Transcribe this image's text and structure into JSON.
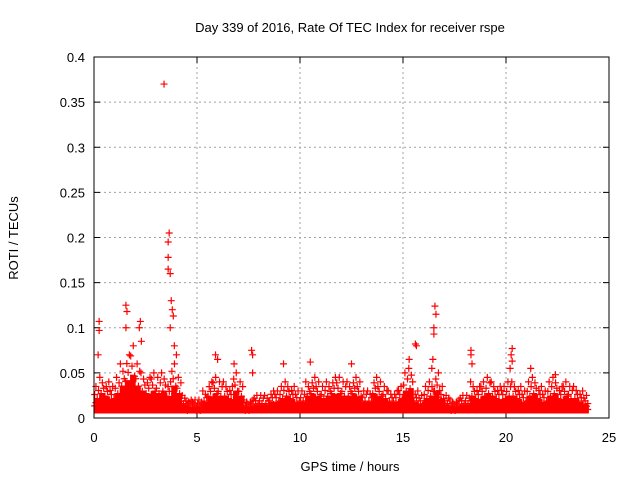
{
  "chart_data": {
    "type": "scatter",
    "title": "Day 339 of 2016, Rate Of TEC Index for receiver rspe",
    "xlabel": "GPS time / hours",
    "ylabel": "ROTI / TECUs",
    "xlim": [
      0,
      25
    ],
    "ylim": [
      0,
      0.4
    ],
    "xticks": [
      "0",
      "5",
      "10",
      "15",
      "20",
      "25"
    ],
    "xtick_values": [
      0,
      5,
      10,
      15,
      20,
      25
    ],
    "yticks": [
      "0",
      "0.05",
      "0.1",
      "0.15",
      "0.2",
      "0.25",
      "0.3",
      "0.35",
      "0.4"
    ],
    "ytick_values": [
      0,
      0.05,
      0.1,
      0.15,
      0.2,
      0.25,
      0.3,
      0.35,
      0.4
    ],
    "grid": true,
    "legend": "none",
    "series_color": "#ff0000",
    "marker": "plus",
    "band": {
      "x_start": 0,
      "x_step": 0.25,
      "lower": 0.005,
      "upper": [
        0.035,
        0.045,
        0.04,
        0.035,
        0.045,
        0.06,
        0.07,
        0.08,
        0.06,
        0.05,
        0.045,
        0.05,
        0.045,
        0.05,
        0.04,
        0.06,
        0.045,
        0.025,
        0.02,
        0.02,
        0.02,
        0.03,
        0.04,
        0.045,
        0.04,
        0.04,
        0.035,
        0.05,
        0.04,
        0.02,
        0.02,
        0.025,
        0.025,
        0.025,
        0.03,
        0.03,
        0.035,
        0.04,
        0.035,
        0.03,
        0.03,
        0.04,
        0.045,
        0.04,
        0.035,
        0.04,
        0.045,
        0.045,
        0.04,
        0.04,
        0.045,
        0.04,
        0.03,
        0.03,
        0.045,
        0.04,
        0.035,
        0.03,
        0.03,
        0.035,
        0.05,
        0.055,
        0.03,
        0.025,
        0.035,
        0.04,
        0.05,
        0.035,
        0.025,
        0.02,
        0.02,
        0.025,
        0.025,
        0.04,
        0.035,
        0.04,
        0.045,
        0.04,
        0.035,
        0.035,
        0.04,
        0.04,
        0.035,
        0.03,
        0.04,
        0.045,
        0.035,
        0.03,
        0.04,
        0.045,
        0.035,
        0.04,
        0.035,
        0.035,
        0.03,
        0.025
      ]
    },
    "outliers": [
      [
        0.25,
        0.107
      ],
      [
        0.25,
        0.097
      ],
      [
        0.2,
        0.07
      ],
      [
        1.55,
        0.125
      ],
      [
        1.6,
        0.118
      ],
      [
        1.55,
        0.1
      ],
      [
        2.25,
        0.107
      ],
      [
        2.2,
        0.1
      ],
      [
        2.3,
        0.085
      ],
      [
        3.4,
        0.37
      ],
      [
        3.65,
        0.205
      ],
      [
        3.6,
        0.195
      ],
      [
        3.6,
        0.178
      ],
      [
        3.6,
        0.165
      ],
      [
        3.7,
        0.16
      ],
      [
        3.75,
        0.13
      ],
      [
        3.8,
        0.12
      ],
      [
        3.85,
        0.113
      ],
      [
        3.7,
        0.1
      ],
      [
        3.9,
        0.08
      ],
      [
        4.0,
        0.07
      ],
      [
        5.9,
        0.07
      ],
      [
        6.0,
        0.065
      ],
      [
        6.8,
        0.06
      ],
      [
        7.65,
        0.075
      ],
      [
        7.7,
        0.07
      ],
      [
        7.7,
        0.05
      ],
      [
        9.2,
        0.06
      ],
      [
        10.5,
        0.062
      ],
      [
        12.5,
        0.06
      ],
      [
        15.3,
        0.065
      ],
      [
        15.6,
        0.082
      ],
      [
        15.65,
        0.08
      ],
      [
        16.55,
        0.124
      ],
      [
        16.6,
        0.115
      ],
      [
        16.5,
        0.1
      ],
      [
        16.5,
        0.093
      ],
      [
        16.45,
        0.065
      ],
      [
        16.4,
        0.055
      ],
      [
        18.3,
        0.075
      ],
      [
        18.3,
        0.07
      ],
      [
        18.35,
        0.06
      ],
      [
        20.3,
        0.077
      ],
      [
        20.25,
        0.07
      ],
      [
        20.3,
        0.063
      ],
      [
        20.2,
        0.055
      ],
      [
        21.2,
        0.055
      ],
      [
        22.4,
        0.048
      ]
    ]
  }
}
